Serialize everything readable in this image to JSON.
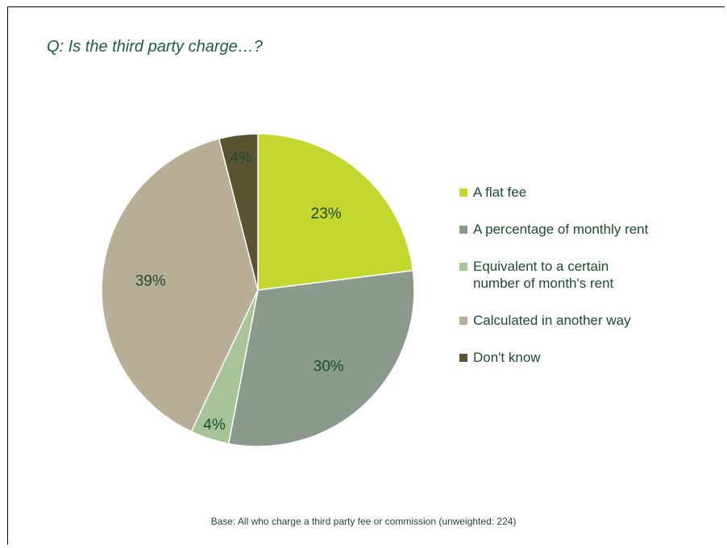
{
  "question": "Q: Is the third party charge…?",
  "base_note": "Base: All who charge a third party fee or commission (unweighted: 224)",
  "chart_data": {
    "type": "pie",
    "title": "",
    "categories": [
      "A flat fee",
      "A percentage of monthly rent",
      "Equivalent to a certain number of month's rent",
      "Calculated in another way",
      "Don't know"
    ],
    "values": [
      23,
      30,
      4,
      39,
      4
    ],
    "labels": [
      "23%",
      "30%",
      "4%",
      "39%",
      "4%"
    ],
    "colors": [
      "#c4d72f",
      "#8a9a8d",
      "#a6c498",
      "#b8ae96",
      "#5a5330"
    ],
    "legend_position": "right"
  }
}
